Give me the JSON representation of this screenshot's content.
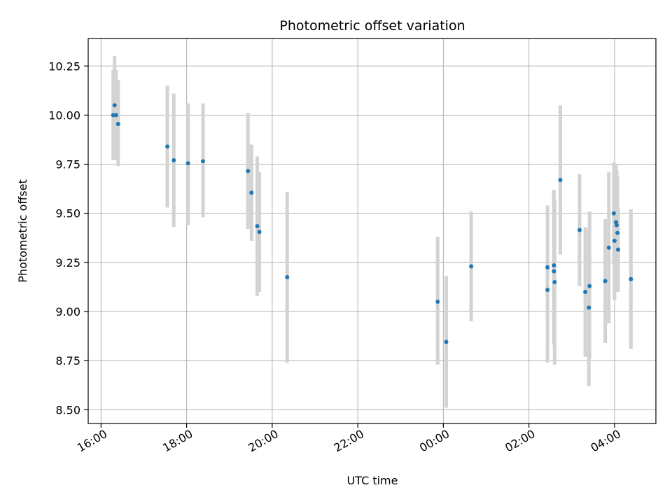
{
  "chart_data": {
    "type": "scatter",
    "title": "Photometric offset variation",
    "xlabel": "UTC time",
    "ylabel": "Photometric offset",
    "grid": true,
    "x_ticks": [
      "16:00",
      "18:00",
      "20:00",
      "22:00",
      "00:00",
      "02:00",
      "04:00"
    ],
    "y_ticks": [
      "8.50",
      "8.75",
      "9.00",
      "9.25",
      "9.50",
      "9.75",
      "10.00",
      "10.25"
    ],
    "xlim": [
      "15:42",
      "04:58"
    ],
    "ylim": [
      8.43,
      10.39
    ],
    "colors": {
      "point": "#1f77b4",
      "errorbar": "#d3d3d3",
      "grid": "#b0b0b0"
    },
    "series": [
      {
        "points": [
          {
            "t": "16:17",
            "y": 10.0,
            "lo": 9.77,
            "hi": 10.23
          },
          {
            "t": "16:19",
            "y": 10.05,
            "lo": 9.81,
            "hi": 10.3
          },
          {
            "t": "16:21",
            "y": 10.0,
            "lo": 9.77,
            "hi": 10.23
          },
          {
            "t": "16:24",
            "y": 9.955,
            "lo": 9.74,
            "hi": 10.18
          },
          {
            "t": "17:33",
            "y": 9.84,
            "lo": 9.53,
            "hi": 10.15
          },
          {
            "t": "17:42",
            "y": 9.77,
            "lo": 9.43,
            "hi": 10.11
          },
          {
            "t": "18:02",
            "y": 9.755,
            "lo": 9.44,
            "hi": 10.06
          },
          {
            "t": "18:23",
            "y": 9.765,
            "lo": 9.48,
            "hi": 10.06
          },
          {
            "t": "19:26",
            "y": 9.715,
            "lo": 9.42,
            "hi": 10.01
          },
          {
            "t": "19:31",
            "y": 9.605,
            "lo": 9.36,
            "hi": 9.85
          },
          {
            "t": "19:39",
            "y": 9.435,
            "lo": 9.08,
            "hi": 9.79
          },
          {
            "t": "19:42",
            "y": 9.405,
            "lo": 9.1,
            "hi": 9.71
          },
          {
            "t": "20:21",
            "y": 9.175,
            "lo": 8.74,
            "hi": 9.61
          },
          {
            "t": "23:52",
            "y": 9.05,
            "lo": 8.73,
            "hi": 9.38
          },
          {
            "t": "00:04",
            "y": 8.845,
            "lo": 8.51,
            "hi": 9.18
          },
          {
            "t": "00:39",
            "y": 9.23,
            "lo": 8.95,
            "hi": 9.51
          },
          {
            "t": "02:26",
            "y": 9.225,
            "lo": 8.92,
            "hi": 9.54
          },
          {
            "t": "02:26",
            "y": 9.11,
            "lo": 8.74,
            "hi": 9.48
          },
          {
            "t": "02:35",
            "y": 9.235,
            "lo": 8.85,
            "hi": 9.62
          },
          {
            "t": "02:35",
            "y": 9.205,
            "lo": 8.83,
            "hi": 9.58
          },
          {
            "t": "02:36",
            "y": 9.15,
            "lo": 8.73,
            "hi": 9.57
          },
          {
            "t": "02:44",
            "y": 9.67,
            "lo": 9.29,
            "hi": 10.05
          },
          {
            "t": "03:11",
            "y": 9.415,
            "lo": 9.13,
            "hi": 9.7
          },
          {
            "t": "03:19",
            "y": 9.1,
            "lo": 8.77,
            "hi": 9.43
          },
          {
            "t": "03:24",
            "y": 9.02,
            "lo": 8.62,
            "hi": 9.42
          },
          {
            "t": "03:25",
            "y": 9.13,
            "lo": 8.76,
            "hi": 9.51
          },
          {
            "t": "03:47",
            "y": 9.155,
            "lo": 8.84,
            "hi": 9.47
          },
          {
            "t": "03:52",
            "y": 9.325,
            "lo": 8.94,
            "hi": 9.71
          },
          {
            "t": "03:59",
            "y": 9.5,
            "lo": 9.24,
            "hi": 9.76
          },
          {
            "t": "04:00",
            "y": 9.36,
            "lo": 9.06,
            "hi": 9.66
          },
          {
            "t": "04:02",
            "y": 9.455,
            "lo": 9.16,
            "hi": 9.75
          },
          {
            "t": "04:03",
            "y": 9.44,
            "lo": 9.13,
            "hi": 9.72
          },
          {
            "t": "04:04",
            "y": 9.4,
            "lo": 9.1,
            "hi": 9.69
          },
          {
            "t": "04:05",
            "y": 9.315,
            "lo": 9.1,
            "hi": 9.53
          },
          {
            "t": "04:23",
            "y": 9.165,
            "lo": 8.81,
            "hi": 9.52
          }
        ]
      }
    ]
  }
}
